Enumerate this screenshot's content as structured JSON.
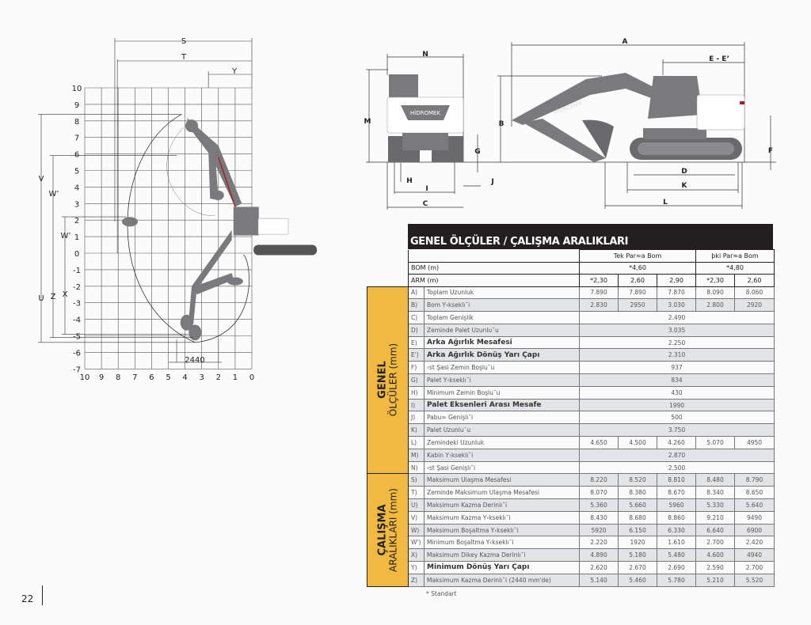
{
  "page_number": "22",
  "reach_chart": {
    "labels": {
      "S": "S",
      "T": "T",
      "Y": "Y",
      "V": "V",
      "W": "W’",
      "W_prime": "W’",
      "U": "U",
      "Z": "Z",
      "X": "X",
      "dim_2440": "2440"
    },
    "y_ticks": [
      "10",
      "9",
      "8",
      "7",
      "6",
      "5",
      "4",
      "3",
      "2",
      "1",
      "0",
      "-1",
      "-2",
      "-3",
      "-4",
      "-5",
      "-6",
      "-7"
    ],
    "x_ticks": [
      "10",
      "9",
      "8",
      "7",
      "6",
      "5",
      "4",
      "3",
      "2",
      "1",
      "0"
    ]
  },
  "dimension_diagram": {
    "brand": "HİDROMEK",
    "labels": {
      "A": "A",
      "E": "E - E’",
      "N": "N",
      "M": "M",
      "B": "B",
      "G": "G",
      "F": "F",
      "H": "H",
      "I": "I",
      "J": "J",
      "C": "C",
      "D": "D",
      "K": "K",
      "L": "L"
    }
  },
  "colors": {
    "accent": "#f0b941",
    "title_bar": "#231f20",
    "machine": "#7a7a7c",
    "stripe": "#a3212b"
  },
  "table": {
    "title": "GENEL ÖLÇÜLER / ÇALIŞMA ARALIKLARI",
    "group_single": "Tek Par≈a Bom",
    "group_double": "þki Par≈a Bom",
    "bom_label": "BOM (m)",
    "bom_single": "*4,60",
    "bom_double": "*4,80",
    "arm_label": "ARM (m)",
    "arm_values": [
      "*2,30",
      "2,60",
      "2,90",
      "*2,30",
      "2,60"
    ],
    "section1": {
      "title": "GENEL",
      "subtitle": "ÖLÇÜLER (mm)"
    },
    "section2": {
      "title": "ÇALIŞMA",
      "subtitle": "ARALIKLARI (mm)"
    },
    "rows1": [
      {
        "code": "A)",
        "label": "Toplam Uzunluk",
        "values": [
          "7.890",
          "7.890",
          "7.870",
          "8.090",
          "8.060"
        ]
      },
      {
        "code": "B)",
        "label": "Bom Y‹kseklı˘i",
        "values": [
          "2.830",
          "2950",
          "3.030",
          "2.800",
          "2920"
        ]
      },
      {
        "code": "C)",
        "label": "Toplam Genişlik",
        "value": "2.490"
      },
      {
        "code": "D)",
        "label": "Zeminde Palet Uzunlu˘u",
        "value": "3.035"
      },
      {
        "code": "E)",
        "label": "Arka Ağırlık Mesafesi",
        "bold": true,
        "value": "2.250"
      },
      {
        "code": "E')",
        "label": "Arka Ağırlık Dönüş Yarı Çapı",
        "bold": true,
        "value": "2.310"
      },
      {
        "code": "F)",
        "label": "‹st Şasi Zemin Boşlu˘u",
        "value": "937"
      },
      {
        "code": "G)",
        "label": "Palet Y‹kseklı˘i",
        "value": "834"
      },
      {
        "code": "H)",
        "label": "Minimum Zemin Boşlu˘u",
        "value": "430"
      },
      {
        "code": "I)",
        "label": "Palet Eksenleri Arası Mesafe",
        "bold": true,
        "value": "1990"
      },
      {
        "code": "J)",
        "label": "Pabu≈ Genişlı˘i",
        "value": "500"
      },
      {
        "code": "K)",
        "label": "Palet Uzunlu˘u",
        "value": "3.750"
      },
      {
        "code": "L)",
        "label": "Zemindeki Uzunluk",
        "values": [
          "4.650",
          "4.500",
          "4.260",
          "5.070",
          "4950"
        ]
      },
      {
        "code": "M)",
        "label": "Kabin Y‹kseklı˘i",
        "value": "2.870"
      },
      {
        "code": "N)",
        "label": "‹st Şasi Genişlı˘i",
        "value": "2.500"
      }
    ],
    "rows2": [
      {
        "code": "S)",
        "label": "Maksimum Ulaşma Mesafesi",
        "values": [
          "8.220",
          "8.520",
          "8.810",
          "8.480",
          "8.790"
        ]
      },
      {
        "code": "T)",
        "label": "Zeminde Maksimum Ulaşma Mesafesi",
        "values": [
          "8.070",
          "8.380",
          "8.670",
          "8.340",
          "8.650"
        ]
      },
      {
        "code": "U)",
        "label": "Maksimum Kazma Derinlı˘i",
        "values": [
          "5.360",
          "5.660",
          "5960",
          "5.330",
          "5.640"
        ]
      },
      {
        "code": "V)",
        "label": "Maksimum Kazma Y‹kseklı˘i",
        "values": [
          "8.430",
          "8.680",
          "8.860",
          "9.210",
          "9490"
        ]
      },
      {
        "code": "W)",
        "label": "Maksimum Boşaltma Y‹kseklı˘i",
        "values": [
          "5920",
          "6.150",
          "6.330",
          "6.640",
          "6900"
        ]
      },
      {
        "code": "W')",
        "label": "Minimum Boşaltma Y‹kseklı˘i",
        "values": [
          "2.220",
          "1920",
          "1.610",
          "2.700",
          "2.420"
        ]
      },
      {
        "code": "X)",
        "label": "Maksimum Dikey Kazma Derinlı˘i",
        "values": [
          "4.890",
          "5.180",
          "5.480",
          "4.600",
          "4940"
        ]
      },
      {
        "code": "Y)",
        "label": "Minimum Dönüş Yarı Çapı",
        "bold": true,
        "values": [
          "2.620",
          "2.670",
          "2.690",
          "2.590",
          "2.700"
        ]
      },
      {
        "code": "Z)",
        "label": "Maksimum Kazma Derinlı˘i (2440 mm'de)",
        "values": [
          "5.140",
          "5.460",
          "5.780",
          "5.210",
          "5.520"
        ]
      }
    ],
    "footnote": "* Standart"
  }
}
